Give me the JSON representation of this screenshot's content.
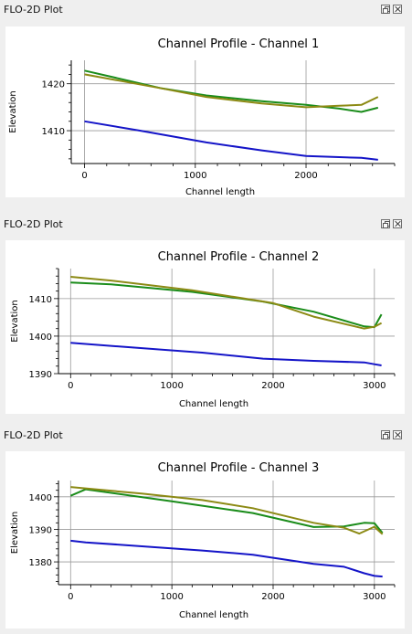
{
  "panels": [
    {
      "title": "FLO-2D Plot"
    },
    {
      "title": "FLO-2D Plot"
    },
    {
      "title": "FLO-2D Plot"
    }
  ],
  "colors": {
    "blue": "#1414c8",
    "green": "#1a8c1a",
    "olive": "#8c8a14"
  },
  "chart_data": [
    {
      "type": "line",
      "title": "Channel Profile - Channel 1",
      "xlabel": "Channel length",
      "ylabel": "Elevation",
      "xlim": [
        -120,
        2800
      ],
      "ylim": [
        1403,
        1425
      ],
      "xticks": [
        0,
        1000,
        2000
      ],
      "yticks": [
        1410,
        1420
      ],
      "grid": true,
      "series": [
        {
          "color": "green",
          "x": [
            0,
            700,
            1100,
            1600,
            2000,
            2300,
            2500,
            2650
          ],
          "y": [
            1422.8,
            1419.0,
            1417.5,
            1416.3,
            1415.5,
            1414.7,
            1414.0,
            1414.9
          ]
        },
        {
          "color": "olive",
          "x": [
            0,
            700,
            1100,
            1600,
            2000,
            2300,
            2500,
            2650
          ],
          "y": [
            1422.0,
            1419.0,
            1417.2,
            1415.8,
            1415.0,
            1415.3,
            1415.5,
            1417.2
          ]
        },
        {
          "color": "blue",
          "x": [
            0,
            500,
            1100,
            1600,
            2000,
            2500,
            2650
          ],
          "y": [
            1412.0,
            1410.0,
            1407.5,
            1405.8,
            1404.6,
            1404.2,
            1403.8
          ]
        }
      ]
    },
    {
      "type": "line",
      "title": "Channel Profile - Channel 2",
      "xlabel": "Channel length",
      "ylabel": "Elevation",
      "xlim": [
        -120,
        3200
      ],
      "ylim": [
        1390,
        1418
      ],
      "xticks": [
        0,
        1000,
        2000,
        3000
      ],
      "yticks": [
        1390,
        1400,
        1410
      ],
      "grid": true,
      "series": [
        {
          "color": "green",
          "x": [
            0,
            400,
            1200,
            1900,
            2400,
            2900,
            3000,
            3070
          ],
          "y": [
            1414.3,
            1413.8,
            1411.8,
            1409.2,
            1406.5,
            1402.6,
            1402.4,
            1405.8
          ]
        },
        {
          "color": "olive",
          "x": [
            0,
            400,
            1200,
            2000,
            2400,
            2900,
            3000,
            3070
          ],
          "y": [
            1415.8,
            1414.8,
            1412.2,
            1408.8,
            1405.2,
            1402.0,
            1402.5,
            1403.5
          ]
        },
        {
          "color": "blue",
          "x": [
            0,
            600,
            1300,
            1900,
            2400,
            2900,
            3000,
            3070
          ],
          "y": [
            1398.2,
            1397.0,
            1395.6,
            1394.0,
            1393.4,
            1393.0,
            1392.5,
            1392.2
          ]
        }
      ]
    },
    {
      "type": "line",
      "title": "Channel Profile - Channel 3",
      "xlabel": "Channel length",
      "ylabel": "Elevation",
      "xlim": [
        -120,
        3200
      ],
      "ylim": [
        1373,
        1405
      ],
      "xticks": [
        0,
        1000,
        2000,
        3000
      ],
      "yticks": [
        1380,
        1390,
        1400
      ],
      "grid": true,
      "series": [
        {
          "color": "green",
          "x": [
            0,
            150,
            1000,
            1800,
            2400,
            2700,
            2900,
            3000,
            3080
          ],
          "y": [
            1400.3,
            1402.3,
            1398.6,
            1395.0,
            1390.7,
            1390.9,
            1392.0,
            1391.9,
            1388.9
          ]
        },
        {
          "color": "olive",
          "x": [
            0,
            700,
            1300,
            1800,
            2400,
            2700,
            2850,
            3000,
            3080
          ],
          "y": [
            1403.0,
            1401.0,
            1399.0,
            1396.5,
            1392.0,
            1390.5,
            1388.7,
            1390.8,
            1388.5
          ]
        },
        {
          "color": "blue",
          "x": [
            0,
            150,
            800,
            1300,
            1800,
            2400,
            2700,
            2900,
            3000,
            3080
          ],
          "y": [
            1386.5,
            1386.0,
            1384.6,
            1383.5,
            1382.2,
            1379.4,
            1378.5,
            1376.5,
            1375.7,
            1375.5
          ]
        }
      ]
    }
  ]
}
